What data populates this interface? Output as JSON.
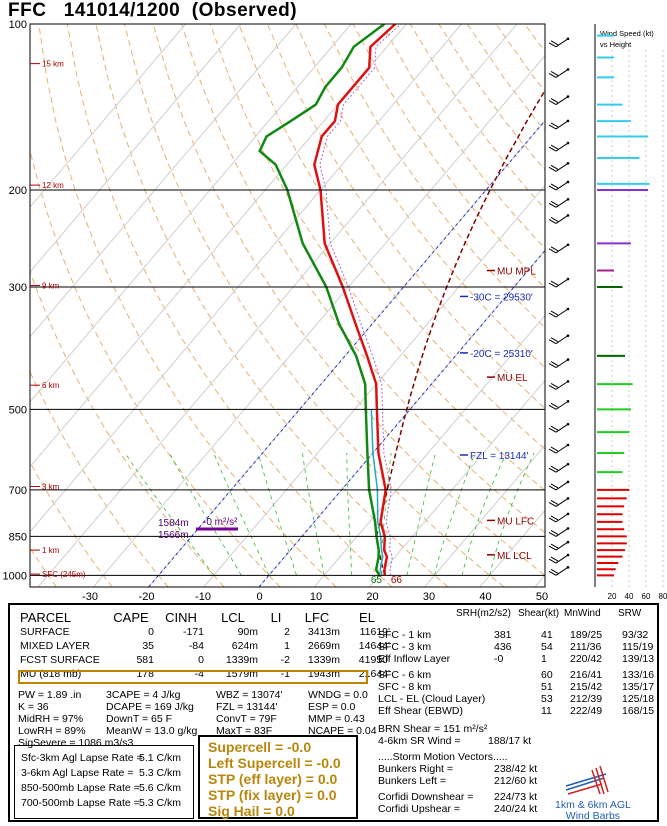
{
  "header": {
    "station": "FFC",
    "datetime": "141014/1200",
    "status": "(Observed)"
  },
  "chart_data": {
    "type": "skew-t",
    "pressure_levels": [
      100,
      200,
      300,
      500,
      700,
      850,
      1000
    ],
    "x_ticks": [
      -30,
      -20,
      -10,
      0,
      10,
      20,
      30,
      40,
      50
    ],
    "height_labels": [
      "15 km",
      "12 km",
      "9 km",
      "6 km",
      "3 km",
      "1 km",
      "SFC (245m)"
    ],
    "temperature": [
      [
        1000,
        21
      ],
      [
        975,
        20
      ],
      [
        925,
        18.5
      ],
      [
        900,
        17
      ],
      [
        850,
        15
      ],
      [
        800,
        12
      ],
      [
        700,
        8
      ],
      [
        600,
        1
      ],
      [
        500,
        -6
      ],
      [
        450,
        -10
      ],
      [
        400,
        -16
      ],
      [
        350,
        -23
      ],
      [
        300,
        -31
      ],
      [
        250,
        -41
      ],
      [
        200,
        -50
      ],
      [
        180,
        -55
      ],
      [
        160,
        -58
      ],
      [
        150,
        -58
      ],
      [
        140,
        -60
      ],
      [
        130,
        -60
      ],
      [
        120,
        -60
      ],
      [
        110,
        -63
      ],
      [
        100,
        -62
      ]
    ],
    "dewpoint": [
      [
        1000,
        20
      ],
      [
        975,
        18.5
      ],
      [
        925,
        17
      ],
      [
        900,
        16
      ],
      [
        850,
        13.5
      ],
      [
        800,
        11
      ],
      [
        700,
        5
      ],
      [
        600,
        -1
      ],
      [
        500,
        -8
      ],
      [
        450,
        -12
      ],
      [
        400,
        -18
      ],
      [
        350,
        -26
      ],
      [
        300,
        -34
      ],
      [
        250,
        -45
      ],
      [
        200,
        -56
      ],
      [
        180,
        -62
      ],
      [
        170,
        -67
      ],
      [
        160,
        -68
      ],
      [
        150,
        -66
      ],
      [
        140,
        -64
      ],
      [
        130,
        -65
      ],
      [
        120,
        -65
      ],
      [
        110,
        -66
      ],
      [
        100,
        -64
      ]
    ],
    "sfc_temp_label": "66",
    "sfc_dew_label": "65",
    "annotations": [
      {
        "label": "MU MPL",
        "p": 280
      },
      {
        "label": "-30C = 29530'",
        "p": 312
      },
      {
        "label": "-20C = 25310'",
        "p": 395
      },
      {
        "label": "MU EL",
        "p": 437
      },
      {
        "label": "FZL = 13144'",
        "p": 605
      },
      {
        "label": "MU LFC",
        "p": 795
      },
      {
        "label": "ML LCL",
        "p": 918
      }
    ],
    "cape_label": {
      "text1": "1584m",
      "text2": "1566m",
      "value": "-0 m²/s²"
    },
    "wind_profile_header": [
      "Wind Speed (kt)",
      "vs Height"
    ],
    "wind_profile_ticks": [
      "20",
      "40",
      "60",
      "80"
    ],
    "wind_profile": [
      {
        "p": 1000,
        "kt": 20,
        "color": "#dd0000"
      },
      {
        "p": 975,
        "kt": 22,
        "color": "#dd0000"
      },
      {
        "p": 950,
        "kt": 25,
        "color": "#dd0000"
      },
      {
        "p": 925,
        "kt": 30,
        "color": "#dd0000"
      },
      {
        "p": 900,
        "kt": 33,
        "color": "#dd0000"
      },
      {
        "p": 875,
        "kt": 35,
        "color": "#dd0000"
      },
      {
        "p": 850,
        "kt": 35,
        "color": "#dd0000"
      },
      {
        "p": 825,
        "kt": 32,
        "color": "#dd0000"
      },
      {
        "p": 800,
        "kt": 30,
        "color": "#dd0000"
      },
      {
        "p": 775,
        "kt": 30,
        "color": "#dd0000"
      },
      {
        "p": 750,
        "kt": 32,
        "color": "#dd0000"
      },
      {
        "p": 725,
        "kt": 35,
        "color": "#dd0000"
      },
      {
        "p": 700,
        "kt": 38,
        "color": "#dd0000"
      },
      {
        "p": 650,
        "kt": 30,
        "color": "#22cc22"
      },
      {
        "p": 600,
        "kt": 32,
        "color": "#22cc22"
      },
      {
        "p": 550,
        "kt": 38,
        "color": "#22cc22"
      },
      {
        "p": 500,
        "kt": 40,
        "color": "#22cc22"
      },
      {
        "p": 450,
        "kt": 42,
        "color": "#22cc22"
      },
      {
        "p": 400,
        "kt": 33,
        "color": "#006600"
      },
      {
        "p": 300,
        "kt": 30,
        "color": "#006600"
      },
      {
        "p": 280,
        "kt": 20,
        "color": "#aa2288"
      },
      {
        "p": 250,
        "kt": 40,
        "color": "#8833cc"
      },
      {
        "p": 200,
        "kt": 60,
        "color": "#8833cc"
      },
      {
        "p": 195,
        "kt": 62,
        "color": "#33ccee"
      },
      {
        "p": 175,
        "kt": 50,
        "color": "#33ccee"
      },
      {
        "p": 160,
        "kt": 60,
        "color": "#33ccee"
      },
      {
        "p": 150,
        "kt": 40,
        "color": "#33ccee"
      },
      {
        "p": 140,
        "kt": 30,
        "color": "#33ccee"
      },
      {
        "p": 125,
        "kt": 20,
        "color": "#33ccee"
      },
      {
        "p": 115,
        "kt": 20,
        "color": "#33ccee"
      },
      {
        "p": 105,
        "kt": 20,
        "color": "#33ccee"
      }
    ]
  },
  "parcel_table": {
    "headers": [
      "PARCEL",
      "CAPE",
      "CINH",
      "LCL",
      "LI",
      "LFC",
      "EL"
    ],
    "rows": [
      [
        "SURFACE",
        "0",
        "-171",
        "90m",
        "2",
        "3413m",
        "11619'"
      ],
      [
        "MIXED LAYER",
        "35",
        "-84",
        "624m",
        "1",
        "2669m",
        "14644'"
      ],
      [
        "FCST SURFACE",
        "581",
        "0",
        "1339m",
        "-2",
        "1339m",
        "41950'"
      ],
      [
        "MU   (818 mb)",
        "178",
        "-4",
        "1579m",
        "-1",
        "1943m",
        "21644'"
      ]
    ]
  },
  "indices": {
    "col1": [
      "PW = 1.89 .in",
      "K = 36",
      "MidRH = 97%",
      "LowRH = 89%",
      "SigSevere = 1086 m3/s3"
    ],
    "col2": [
      "3CAPE = 4 J/kg",
      "DCAPE = 169 J/kg",
      "DownT = 65 F",
      "MeanW = 13.0 g/kg"
    ],
    "col3": [
      "WBZ = 13074'",
      "FZL = 13144'",
      "ConvT = 79F",
      "MaxT = 83F"
    ],
    "col4": [
      "WNDG = 0.0",
      "ESP = 0.0",
      "MMP = 0.43",
      "NCAPE = 0.04"
    ]
  },
  "lapse_rates": [
    [
      "Sfc-3km Agl Lapse Rate =",
      "5.1 C/km"
    ],
    [
      "3-6km Agl Lapse Rate =",
      "5.3 C/km"
    ],
    [
      "850-500mb Lapse Rate =",
      "5.6 C/km"
    ],
    [
      "700-500mb Lapse Rate =",
      "5.3 C/km"
    ]
  ],
  "composites": [
    "Supercell = -0.0",
    "Left Supercell = -0.0",
    "STP (eff layer) = 0.0",
    "STP (fix layer) = 0.0",
    "Sig Hail = 0.0"
  ],
  "kinematics": {
    "headers": [
      "SRH(m2/s2)",
      "Shear(kt)",
      "MnWind",
      "SRW"
    ],
    "rows": [
      [
        "SFC - 1 km",
        "381",
        "41",
        "189/25",
        "93/32"
      ],
      [
        "SFC - 3 km",
        "436",
        "54",
        "211/36",
        "115/19"
      ],
      [
        "Eff Inflow Layer",
        "-0",
        "1",
        "220/42",
        "139/13"
      ],
      [
        "SFC - 6 km",
        "",
        "60",
        "216/41",
        "133/16"
      ],
      [
        "SFC - 8 km",
        "",
        "51",
        "215/42",
        "135/17"
      ],
      [
        "LCL - EL (Cloud Layer)",
        "",
        "53",
        "212/39",
        "125/18"
      ],
      [
        "Eff Shear (EBWD)",
        "",
        "11",
        "222/49",
        "168/15"
      ]
    ],
    "brn": "BRN Shear =  151 m²/s²",
    "srwind": "4-6km SR Wind =",
    "srwind_val": "188/17 kt",
    "motion_title": ".....Storm Motion Vectors.....",
    "bunkers_right": "Bunkers Right =",
    "bunkers_right_val": "238/42 kt",
    "bunkers_left": "Bunkers Left =",
    "bunkers_left_val": "212/60 kt",
    "corfidi_down": "Corfidi Downshear =",
    "corfidi_down_val": "224/73 kt",
    "corfidi_up": "Corfidi Upshear =",
    "corfidi_up_val": "240/24 kt"
  },
  "barb_legend": [
    "1km & 6km AGL",
    "Wind Barbs"
  ]
}
